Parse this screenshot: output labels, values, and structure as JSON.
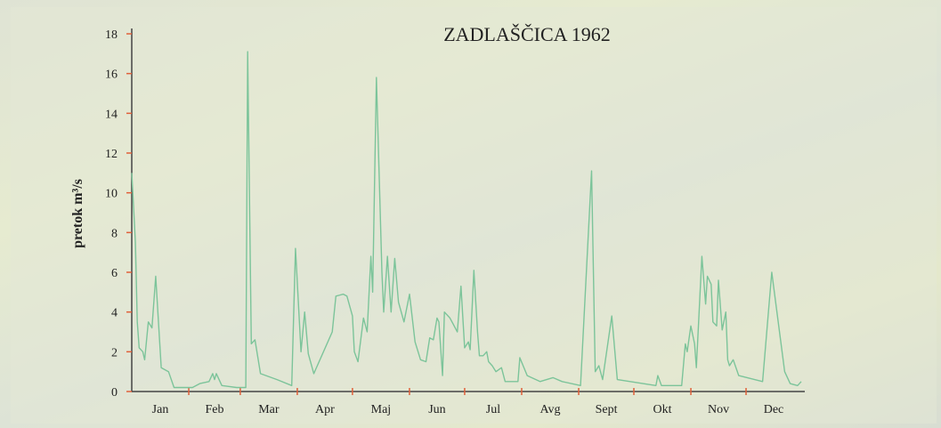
{
  "chart_data": {
    "type": "line",
    "title": "ZADLAŠČICA 1962",
    "y_label": "pretok m³/s",
    "categories": [
      "Jan",
      "Feb",
      "Mar",
      "Apr",
      "Maj",
      "Jun",
      "Jul",
      "Avg",
      "Sept",
      "Okt",
      "Nov",
      "Dec"
    ],
    "xlim": [
      1,
      365
    ],
    "xticks": [
      32,
      60,
      91,
      121,
      152,
      182,
      213,
      244,
      274,
      305,
      335
    ],
    "ylim": [
      0,
      18
    ],
    "yticks": [
      0,
      2,
      4,
      6,
      8,
      10,
      12,
      14,
      16,
      18
    ],
    "grid": false,
    "series": [
      {
        "name": "pretok",
        "color": "#7cc49a",
        "x": [
          1,
          3,
          4,
          5,
          7,
          8,
          10,
          12,
          14,
          17,
          21,
          24,
          34,
          38,
          43,
          45,
          46,
          47,
          50,
          58,
          63,
          64,
          66,
          68,
          71,
          80,
          88,
          90,
          93,
          95,
          97,
          100,
          110,
          112,
          116,
          118,
          121,
          122,
          124,
          127,
          129,
          131,
          132,
          134,
          137,
          138,
          140,
          142,
          144,
          146,
          149,
          152,
          155,
          158,
          161,
          163,
          165,
          167,
          168,
          170,
          171,
          174,
          178,
          180,
          182,
          184,
          185,
          187,
          189,
          190,
          192,
          194,
          195,
          197,
          199,
          202,
          204,
          211,
          212,
          216,
          223,
          230,
          235,
          245,
          251,
          253,
          255,
          257,
          262,
          265,
          279,
          286,
          287,
          289,
          300,
          302,
          303,
          305,
          307,
          308,
          311,
          313,
          314,
          316,
          317,
          319,
          320,
          322,
          324,
          325,
          326,
          328,
          331,
          344,
          349,
          356,
          359,
          363,
          365
        ],
        "values": [
          11,
          7.5,
          3.5,
          2.2,
          2,
          1.6,
          3.5,
          3.2,
          5.8,
          1.2,
          1,
          0.2,
          0.2,
          0.4,
          0.5,
          0.9,
          0.6,
          0.9,
          0.3,
          0.2,
          0.2,
          17.1,
          2.4,
          2.6,
          0.9,
          0.6,
          0.3,
          7.2,
          2,
          4,
          1.9,
          0.9,
          3,
          4.8,
          4.9,
          4.8,
          3.8,
          2,
          1.5,
          3.7,
          3,
          6.8,
          5,
          15.8,
          6,
          4,
          6.8,
          4,
          6.7,
          4.5,
          3.5,
          4.9,
          2.5,
          1.6,
          1.5,
          2.7,
          2.6,
          3.7,
          3.5,
          0.8,
          4,
          3.7,
          3,
          5.3,
          2.2,
          2.5,
          2.1,
          6.1,
          3,
          1.8,
          1.8,
          2,
          1.5,
          1.3,
          1,
          1.2,
          0.5,
          0.5,
          1.7,
          0.8,
          0.5,
          0.7,
          0.5,
          0.3,
          11.1,
          1,
          1.3,
          0.6,
          3.8,
          0.6,
          0.4,
          0.3,
          0.8,
          0.3,
          0.3,
          2.4,
          2,
          3.3,
          2.4,
          1.2,
          6.8,
          4.4,
          5.8,
          5.4,
          3.5,
          3.3,
          5.6,
          3.1,
          4,
          1.6,
          1.3,
          1.6,
          0.8,
          0.5,
          6,
          1,
          0.4,
          0.3,
          0.5
        ]
      }
    ]
  }
}
